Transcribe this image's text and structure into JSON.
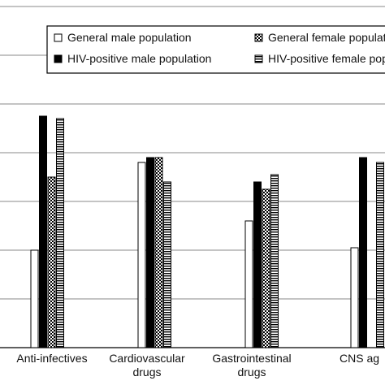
{
  "chart_data": {
    "type": "bar",
    "categories": [
      [
        "Anti-infectives"
      ],
      [
        "Cardiovascular",
        "drugs"
      ],
      [
        "Gastrointestinal",
        "drugs"
      ],
      [
        "CNS ag"
      ]
    ],
    "series": [
      {
        "name": "General male population",
        "pattern": "white",
        "values": [
          20,
          38,
          26,
          20.5
        ]
      },
      {
        "name": "HIV-positive male population",
        "pattern": "black",
        "values": [
          47.5,
          39,
          34,
          39
        ]
      },
      {
        "name": "General female population",
        "pattern": "checker",
        "values": [
          35,
          39,
          32.5,
          null
        ]
      },
      {
        "name": "HIV-positive female population",
        "pattern": "stripes",
        "values": [
          47,
          34,
          35.5,
          38
        ]
      }
    ],
    "legend": {
      "placement": "top-right",
      "entries": [
        {
          "text": "General male population",
          "pattern": "white"
        },
        {
          "text": "General female population",
          "pattern": "checker"
        },
        {
          "text": "HIV-positive male population",
          "pattern": "black"
        },
        {
          "text": "HIV-positive female population",
          "pattern": "stripes"
        }
      ]
    },
    "ylim": [
      0,
      70
    ],
    "grid": true,
    "colors": {
      "edge": "#000000",
      "grid": "#888888",
      "fill_dark": "#000000",
      "fill_light": "#ffffff"
    }
  }
}
